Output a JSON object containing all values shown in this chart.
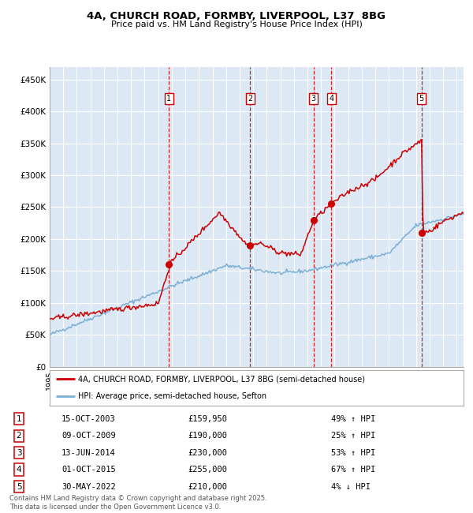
{
  "title": "4A, CHURCH ROAD, FORMBY, LIVERPOOL, L37  8BG",
  "subtitle": "Price paid vs. HM Land Registry's House Price Index (HPI)",
  "background_color": "#ffffff",
  "plot_bg_color": "#dce9f5",
  "grid_color": "#ffffff",
  "hpi_line_color": "#7bafd4",
  "price_line_color": "#cc0000",
  "sale_marker_color": "#cc0000",
  "vline_color": "#cc0000",
  "ylim": [
    0,
    470000
  ],
  "yticks": [
    0,
    50000,
    100000,
    150000,
    200000,
    250000,
    300000,
    350000,
    400000,
    450000
  ],
  "ytick_labels": [
    "£0",
    "£50K",
    "£100K",
    "£150K",
    "£200K",
    "£250K",
    "£300K",
    "£350K",
    "£400K",
    "£450K"
  ],
  "xlim": [
    1995,
    2025.5
  ],
  "sales": [
    {
      "num": 1,
      "date_label": "15-OCT-2003",
      "price": 159950,
      "pct": "49% ↑ HPI",
      "year": 2003.79
    },
    {
      "num": 2,
      "date_label": "09-OCT-2009",
      "price": 190000,
      "pct": "25% ↑ HPI",
      "year": 2009.77
    },
    {
      "num": 3,
      "date_label": "13-JUN-2014",
      "price": 230000,
      "pct": "53% ↑ HPI",
      "year": 2014.45
    },
    {
      "num": 4,
      "date_label": "01-OCT-2015",
      "price": 255000,
      "pct": "67% ↑ HPI",
      "year": 2015.75
    },
    {
      "num": 5,
      "date_label": "30-MAY-2022",
      "price": 210000,
      "pct": "4% ↓ HPI",
      "year": 2022.41
    }
  ],
  "legend_label_red": "4A, CHURCH ROAD, FORMBY, LIVERPOOL, L37 8BG (semi-detached house)",
  "legend_label_blue": "HPI: Average price, semi-detached house, Sefton",
  "footnote": "Contains HM Land Registry data © Crown copyright and database right 2025.\nThis data is licensed under the Open Government Licence v3.0."
}
